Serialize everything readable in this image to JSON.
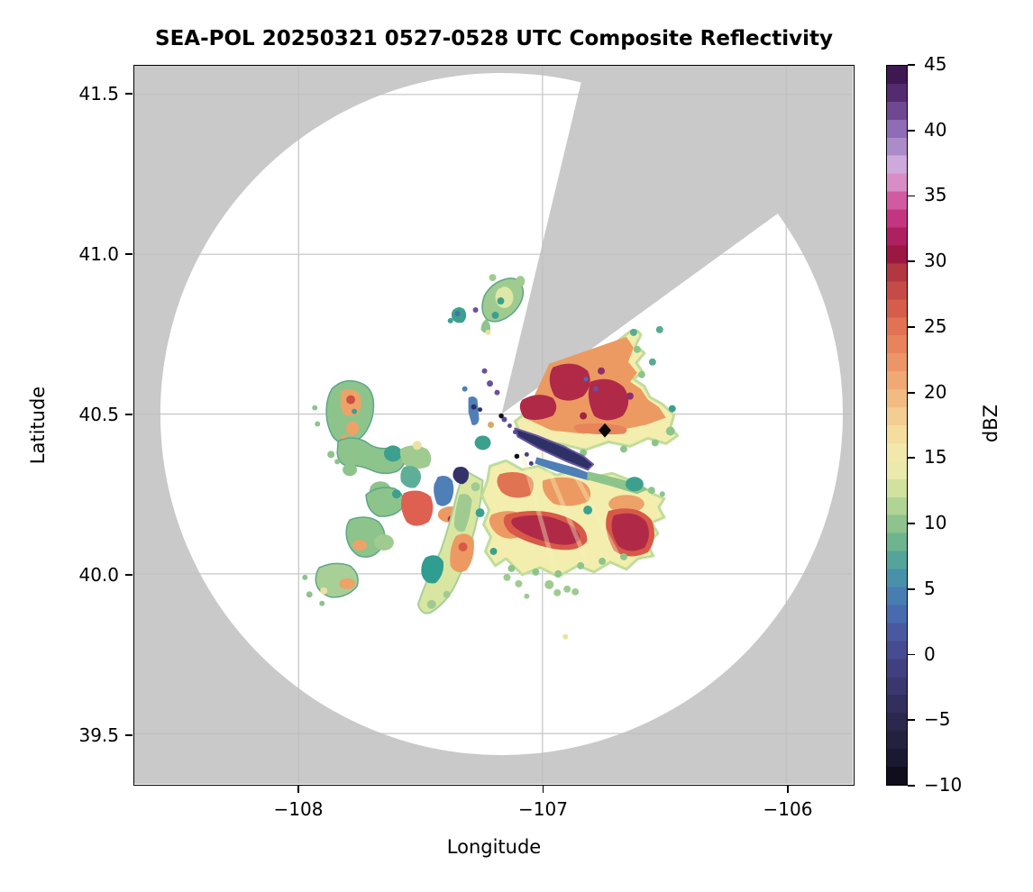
{
  "title": "SEA-POL 20250321 0527-0528 UTC Composite Reflectivity",
  "axes": {
    "xlabel": "Longitude",
    "ylabel": "Latitude",
    "x_tick_labels": [
      "−108",
      "−107",
      "−106"
    ],
    "x_tick_values": [
      -108,
      -107,
      -106
    ],
    "y_tick_labels": [
      "41.5",
      "41.0",
      "40.5",
      "40.0",
      "39.5"
    ],
    "y_tick_values": [
      41.5,
      41.0,
      40.5,
      40.0,
      39.5
    ]
  },
  "colorbar": {
    "label": "dBZ",
    "tick_labels": [
      "45",
      "40",
      "35",
      "30",
      "25",
      "20",
      "15",
      "10",
      "5",
      "0",
      "−5",
      "−10"
    ],
    "tick_values": [
      45,
      40,
      35,
      30,
      25,
      20,
      15,
      10,
      5,
      0,
      -5,
      -10
    ],
    "vmin": -10,
    "vmax": 45,
    "n_bands": 40,
    "stops": [
      [
        45,
        "#2f0f3e"
      ],
      [
        44,
        "#451c59"
      ],
      [
        42.5,
        "#5b3178"
      ],
      [
        41,
        "#7d55a2"
      ],
      [
        40,
        "#9271bb"
      ],
      [
        38.5,
        "#b392cd"
      ],
      [
        37.5,
        "#cdabdd"
      ],
      [
        36.5,
        "#d9a0d2"
      ],
      [
        35.5,
        "#d677b4"
      ],
      [
        34.5,
        "#d0539b"
      ],
      [
        33,
        "#c02e77"
      ],
      [
        31.5,
        "#a81a58"
      ],
      [
        30.5,
        "#9c1742"
      ],
      [
        29.5,
        "#ae3240"
      ],
      [
        28,
        "#c44845"
      ],
      [
        26.5,
        "#d55c4b"
      ],
      [
        25,
        "#e37354"
      ],
      [
        23,
        "#ea8c60"
      ],
      [
        21,
        "#efa873"
      ],
      [
        19,
        "#f2c288"
      ],
      [
        17.5,
        "#f3d698"
      ],
      [
        16,
        "#f5e6a8"
      ],
      [
        14.5,
        "#f0ecb0"
      ],
      [
        13,
        "#d8e5a2"
      ],
      [
        11.5,
        "#b5d695"
      ],
      [
        10,
        "#90c48d"
      ],
      [
        8.5,
        "#6bb38f"
      ],
      [
        7,
        "#52a29d"
      ],
      [
        5.5,
        "#478cad"
      ],
      [
        4,
        "#4877b4"
      ],
      [
        2.5,
        "#4a62aa"
      ],
      [
        1,
        "#48519a"
      ],
      [
        -0.5,
        "#434488"
      ],
      [
        -2,
        "#3c3a75"
      ],
      [
        -3.5,
        "#343162"
      ],
      [
        -5,
        "#2c2950"
      ],
      [
        -6.5,
        "#242140"
      ],
      [
        -8,
        "#1b1930"
      ],
      [
        -9,
        "#121020"
      ],
      [
        -10,
        "#0a0912"
      ]
    ]
  },
  "chart_data": {
    "type": "heatmap",
    "subtype": "radar-composite-reflectivity-ppi",
    "title": "SEA-POL 20250321 0527-0528 UTC Composite Reflectivity",
    "xlabel": "Longitude",
    "ylabel": "Latitude",
    "xlim": [
      -108.67,
      -105.72
    ],
    "ylim": [
      39.34,
      41.59
    ],
    "x_ticks": [
      -108,
      -107,
      -106
    ],
    "y_ticks": [
      41.5,
      41.0,
      40.5,
      40.0,
      39.5
    ],
    "grid": true,
    "colorbar_label": "dBZ",
    "colorbar_range": [
      -10,
      45
    ],
    "colorbar_ticks": [
      45,
      40,
      35,
      30,
      25,
      20,
      15,
      10,
      5,
      0,
      -5,
      -10
    ],
    "radar": {
      "name": "SEA-POL",
      "lon": -107.169,
      "lat": 40.5,
      "coverage_radius_deg_lon": 1.4,
      "coverage_note": "white circular scan domain (~120 km radius) clipped by axes; gray outside coverage"
    },
    "blocked_sector": {
      "azimuth_start_deg": 13.5,
      "azimuth_end_deg": 54,
      "note": "gray no-data wedge from radar to edge of coverage toward NNE-NE"
    },
    "site_marker": {
      "shape": "black-diamond",
      "lon": -106.744,
      "lat": 40.449
    },
    "echo_regions": [
      {
        "name": "NE storm sector",
        "lon_range": [
          -107.13,
          -106.45
        ],
        "lat_range": [
          40.5,
          40.85
        ],
        "dbz_range": [
          15,
          38
        ],
        "desc": "triangular echo mass hugging blocked-wedge edge; orange 25-30 dBZ with crimson 30-35 dBZ cores, pale-yellow 15-18 dBZ fringe"
      },
      {
        "name": "SE large echo region",
        "lon_range": [
          -107.4,
          -106.7
        ],
        "lat_range": [
          39.95,
          40.45
        ],
        "dbz_range": [
          15,
          35
        ],
        "desc": "broad pale-yellow region with radial streaks, orange bands and two crimson 30-35 dBZ cores"
      },
      {
        "name": "near-radar clutter streaks",
        "lon_range": [
          -107.3,
          -106.9
        ],
        "lat_range": [
          40.35,
          40.55
        ],
        "dbz_range": [
          -5,
          8
        ],
        "desc": "navy/blue/purple narrow bands and specks just SE and W of radar"
      },
      {
        "name": "southern spokes",
        "lon_range": [
          -107.75,
          -107.35
        ],
        "lat_range": [
          39.9,
          40.3
        ],
        "dbz_range": [
          8,
          28
        ],
        "desc": "radial yellow-green spokes with orange cores and teal patches"
      },
      {
        "name": "western cells",
        "lon_range": [
          -108.0,
          -107.5
        ],
        "lat_range": [
          40.25,
          40.6
        ],
        "dbz_range": [
          8,
          28
        ],
        "desc": "scattered green cells, one with orange/red 25-30 dBZ core"
      },
      {
        "name": "northern cells",
        "lon_range": [
          -107.35,
          -107.05
        ],
        "lat_range": [
          40.7,
          40.95
        ],
        "dbz_range": [
          8,
          18
        ],
        "desc": "small green cells with teal spots north of radar"
      }
    ]
  }
}
